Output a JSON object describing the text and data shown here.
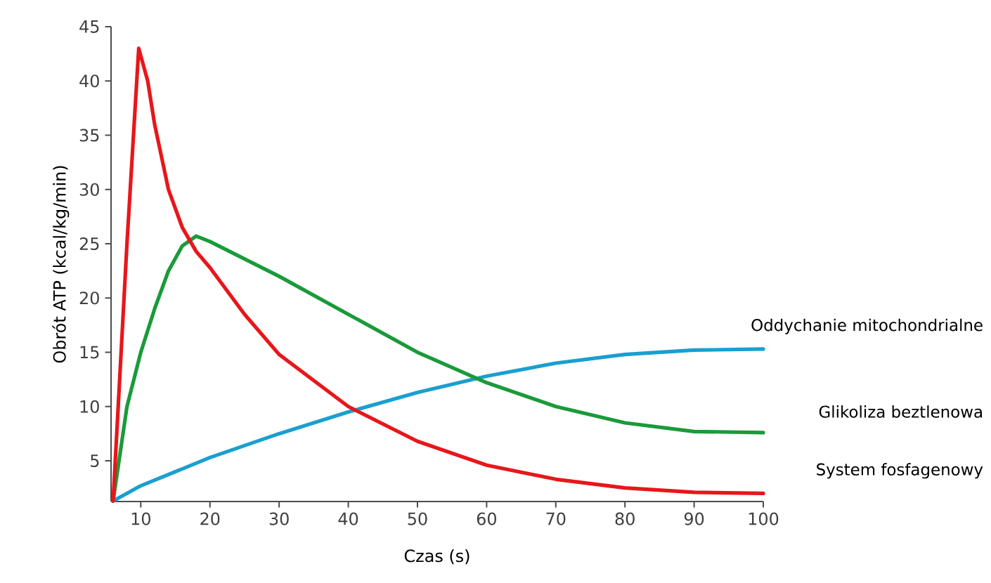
{
  "chart_data": {
    "type": "line",
    "xlabel": "Czas (s)",
    "ylabel": "Obrót ATP (kcal/kg/min)",
    "xlim": [
      5.7,
      100
    ],
    "ylim": [
      1.25,
      45
    ],
    "xticks": [
      10,
      20,
      30,
      40,
      50,
      60,
      70,
      80,
      90,
      100
    ],
    "yticks": [
      5,
      10,
      15,
      20,
      25,
      30,
      35,
      40,
      45
    ],
    "marker": "none",
    "line_style": "solid",
    "series": [
      {
        "name": "Oddychanie mitochondrialne",
        "color": "#1a9fd0",
        "x": [
          6,
          10,
          15,
          20,
          30,
          40,
          50,
          60,
          70,
          80,
          90,
          100
        ],
        "values": [
          1.3,
          2.7,
          4.0,
          5.3,
          7.5,
          9.5,
          11.3,
          12.8,
          14,
          14.8,
          15.2,
          15.3
        ]
      },
      {
        "name": "Glikoliza beztlenowa",
        "color": "#1a9a3a",
        "x": [
          6,
          8,
          10,
          12,
          14,
          16,
          18,
          20,
          30,
          40,
          50,
          60,
          70,
          80,
          90,
          100
        ],
        "values": [
          1.3,
          10,
          15,
          19,
          22.5,
          24.8,
          25.7,
          25.2,
          22,
          18.5,
          15,
          12.2,
          10,
          8.5,
          7.7,
          7.6
        ]
      },
      {
        "name": "System fosfagenowy",
        "color": "#e8161b",
        "x": [
          6,
          8,
          9.7,
          11,
          12,
          14,
          16,
          18,
          20,
          25,
          30,
          40,
          50,
          60,
          70,
          80,
          90,
          100
        ],
        "values": [
          1.3,
          25,
          43,
          40,
          36,
          30,
          26.5,
          24.3,
          22.8,
          18.5,
          14.8,
          10,
          6.8,
          4.6,
          3.3,
          2.5,
          2.1,
          2.0
        ]
      }
    ]
  }
}
